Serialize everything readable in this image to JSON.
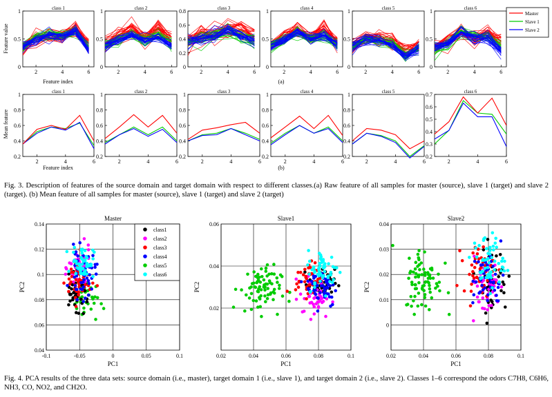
{
  "figure3": {
    "panel_a_titles": [
      "class 1",
      "class 2",
      "class 3",
      "class 4",
      "class 5",
      "class 6"
    ],
    "panel_b_titles": [
      "class 1",
      "class 2",
      "class 3",
      "class 4",
      "class 5",
      "class 6"
    ],
    "panel_a_ymax": [
      1,
      1,
      0.8,
      1,
      1,
      1
    ],
    "panel_b_ymax": [
      1,
      1,
      1,
      1,
      1,
      0.7
    ],
    "ylabel_a": "Feature value",
    "ylabel_b": "Mean feature",
    "xlabel": "Feature index",
    "label_a": "(a)",
    "label_b": "(b)",
    "legend": [
      "Master",
      "Slave 1",
      "Slave 2"
    ],
    "colors": {
      "master": "#ff0000",
      "slave1": "#00cc00",
      "slave2": "#0000ff"
    },
    "caption": "Fig. 3. Description of features of the source domain and target domain with respect to different classes.(a) Raw feature of all samples for master (source), slave 1 (target) and slave 2 (target). (b) Mean feature of all samples for master (source), slave 1 (target) and slave 2 (target)"
  },
  "figure4": {
    "titles": [
      "Master",
      "Slave1",
      "Slave2"
    ],
    "xlabel": "PC1",
    "ylabel": "PC2",
    "legend": [
      "class1",
      "class2",
      "class3",
      "class4",
      "class5",
      "class6"
    ],
    "class_colors": [
      "#000000",
      "#ff00ff",
      "#ff0000",
      "#0000ff",
      "#00cc00",
      "#00ffff"
    ],
    "caption": "Fig. 4. PCA results of the three data sets: source domain (i.e., master), target domain 1 (i.e., slave 1), and target domain 2 (i.e., slave 2). Classes 1–6 correspond the odors C7H8, C6H6, NH3, CO, NO2, and CH2O."
  },
  "chart_data": [
    {
      "type": "line",
      "title": "Fig. 3(b) Mean feature",
      "x": [
        1,
        2,
        3,
        4,
        5,
        6
      ],
      "panels": [
        {
          "title": "class 1",
          "ylim": [
            0.2,
            1
          ],
          "series": [
            {
              "name": "Master",
              "values": [
                0.36,
                0.55,
                0.6,
                0.55,
                0.73,
                0.4
              ]
            },
            {
              "name": "Slave 1",
              "values": [
                0.36,
                0.52,
                0.58,
                0.56,
                0.63,
                0.34
              ]
            },
            {
              "name": "Slave 2",
              "values": [
                0.36,
                0.5,
                0.58,
                0.54,
                0.64,
                0.3
              ]
            }
          ]
        },
        {
          "title": "class 2",
          "ylim": [
            0.2,
            1
          ],
          "series": [
            {
              "name": "Master",
              "values": [
                0.43,
                0.58,
                0.74,
                0.58,
                0.73,
                0.5
              ]
            },
            {
              "name": "Slave 1",
              "values": [
                0.38,
                0.48,
                0.58,
                0.48,
                0.58,
                0.4
              ]
            },
            {
              "name": "Slave 2",
              "values": [
                0.36,
                0.48,
                0.56,
                0.46,
                0.55,
                0.38
              ]
            }
          ]
        },
        {
          "title": "class 3",
          "ylim": [
            0.2,
            1
          ],
          "series": [
            {
              "name": "Master",
              "values": [
                0.42,
                0.54,
                0.57,
                0.61,
                0.64,
                0.5
              ]
            },
            {
              "name": "Slave 1",
              "values": [
                0.4,
                0.48,
                0.5,
                0.56,
                0.5,
                0.42
              ]
            },
            {
              "name": "Slave 2",
              "values": [
                0.4,
                0.47,
                0.48,
                0.56,
                0.48,
                0.4
              ]
            }
          ]
        },
        {
          "title": "class 4",
          "ylim": [
            0.2,
            1
          ],
          "series": [
            {
              "name": "Master",
              "values": [
                0.44,
                0.58,
                0.72,
                0.56,
                0.73,
                0.47
              ]
            },
            {
              "name": "Slave 1",
              "values": [
                0.37,
                0.5,
                0.6,
                0.5,
                0.58,
                0.4
              ]
            },
            {
              "name": "Slave 2",
              "values": [
                0.35,
                0.48,
                0.6,
                0.5,
                0.56,
                0.38
              ]
            }
          ]
        },
        {
          "title": "class 5",
          "ylim": [
            0.2,
            1
          ],
          "series": [
            {
              "name": "Master",
              "values": [
                0.4,
                0.56,
                0.54,
                0.48,
                0.3,
                0.4
              ]
            },
            {
              "name": "Slave 1",
              "values": [
                0.36,
                0.5,
                0.47,
                0.4,
                0.2,
                0.34
              ]
            },
            {
              "name": "Slave 2",
              "values": [
                0.36,
                0.5,
                0.46,
                0.38,
                0.18,
                0.33
              ]
            }
          ]
        },
        {
          "title": "class 6",
          "ylim": [
            0.2,
            0.7
          ],
          "series": [
            {
              "name": "Master",
              "values": [
                0.38,
                0.48,
                0.68,
                0.55,
                0.67,
                0.45
              ]
            },
            {
              "name": "Slave 1",
              "values": [
                0.3,
                0.41,
                0.65,
                0.55,
                0.54,
                0.38
              ]
            },
            {
              "name": "Slave 2",
              "values": [
                0.34,
                0.41,
                0.63,
                0.52,
                0.52,
                0.28
              ]
            }
          ]
        }
      ]
    },
    {
      "type": "scatter",
      "title": "Master",
      "xlim": [
        -0.1,
        0.1
      ],
      "ylim": [
        0.04,
        0.14
      ],
      "series": [
        {
          "name": "class1",
          "center": [
            -0.055,
            0.085
          ],
          "spread": [
            0.012,
            0.008
          ],
          "n": 45
        },
        {
          "name": "class2",
          "center": [
            -0.05,
            0.105
          ],
          "spread": [
            0.01,
            0.01
          ],
          "n": 45
        },
        {
          "name": "class3",
          "center": [
            -0.052,
            0.095
          ],
          "spread": [
            0.012,
            0.012
          ],
          "n": 45
        },
        {
          "name": "class4",
          "center": [
            -0.045,
            0.1
          ],
          "spread": [
            0.012,
            0.012
          ],
          "n": 50
        },
        {
          "name": "class5",
          "center": [
            -0.04,
            0.08
          ],
          "spread": [
            0.012,
            0.012
          ],
          "n": 35
        },
        {
          "name": "class6",
          "center": [
            -0.045,
            0.11
          ],
          "spread": [
            0.01,
            0.008
          ],
          "n": 55
        }
      ]
    },
    {
      "type": "scatter",
      "title": "Slave1",
      "xlim": [
        0.02,
        0.1
      ],
      "ylim": [
        0.0,
        0.06
      ],
      "series": [
        {
          "name": "class1",
          "center": [
            0.082,
            0.032
          ],
          "spread": [
            0.005,
            0.004
          ],
          "n": 45
        },
        {
          "name": "class2",
          "center": [
            0.078,
            0.025
          ],
          "spread": [
            0.006,
            0.006
          ],
          "n": 45
        },
        {
          "name": "class3",
          "center": [
            0.074,
            0.034
          ],
          "spread": [
            0.005,
            0.005
          ],
          "n": 45
        },
        {
          "name": "class4",
          "center": [
            0.082,
            0.03
          ],
          "spread": [
            0.006,
            0.006
          ],
          "n": 50
        },
        {
          "name": "class5",
          "center": [
            0.044,
            0.029
          ],
          "spread": [
            0.008,
            0.007
          ],
          "n": 80
        },
        {
          "name": "class6",
          "center": [
            0.083,
            0.038
          ],
          "spread": [
            0.006,
            0.006
          ],
          "n": 55
        }
      ]
    },
    {
      "type": "scatter",
      "title": "Slave2",
      "xlim": [
        0.02,
        0.1
      ],
      "ylim": [
        -0.01,
        0.04
      ],
      "series": [
        {
          "name": "class1",
          "center": [
            0.082,
            0.018
          ],
          "spread": [
            0.006,
            0.008
          ],
          "n": 45
        },
        {
          "name": "class2",
          "center": [
            0.078,
            0.015
          ],
          "spread": [
            0.006,
            0.007
          ],
          "n": 45
        },
        {
          "name": "class3",
          "center": [
            0.074,
            0.022
          ],
          "spread": [
            0.006,
            0.006
          ],
          "n": 45
        },
        {
          "name": "class4",
          "center": [
            0.08,
            0.018
          ],
          "spread": [
            0.006,
            0.007
          ],
          "n": 50
        },
        {
          "name": "class5",
          "center": [
            0.04,
            0.018
          ],
          "spread": [
            0.007,
            0.008
          ],
          "n": 80
        },
        {
          "name": "class6",
          "center": [
            0.08,
            0.025
          ],
          "spread": [
            0.006,
            0.007
          ],
          "n": 55
        }
      ]
    }
  ]
}
